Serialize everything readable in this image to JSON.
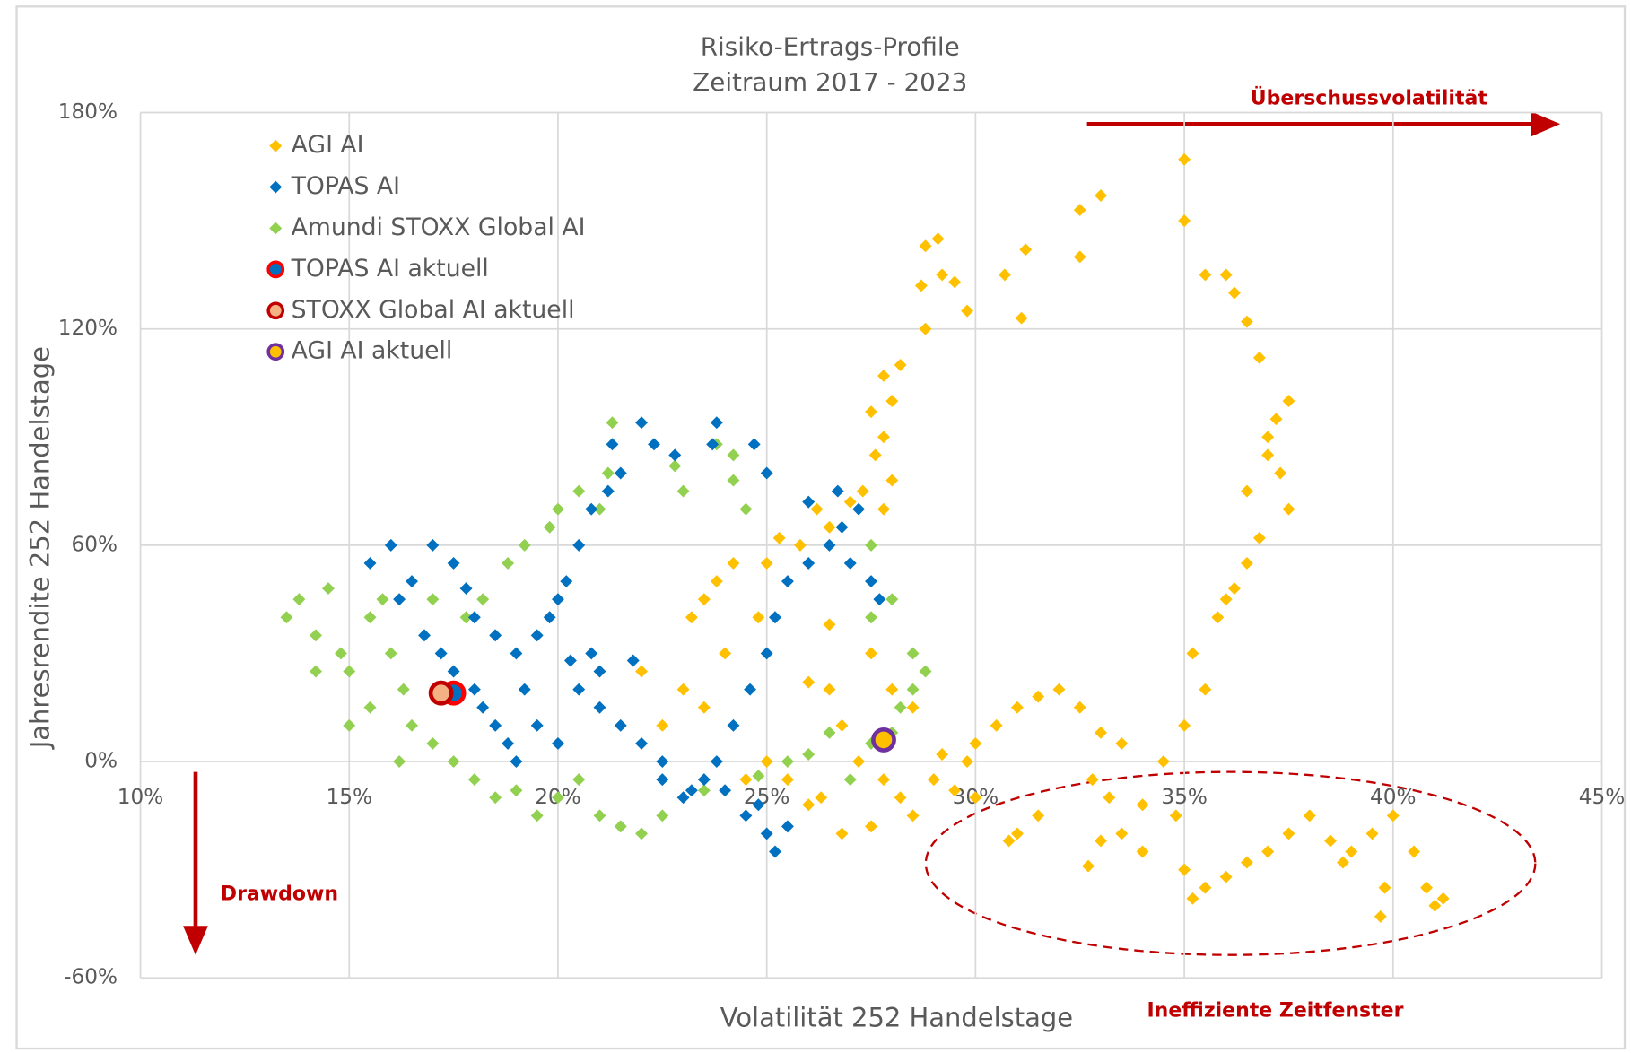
{
  "chart_data": {
    "type": "scatter",
    "title": "Risiko-Ertrags-Profile",
    "subtitle": "Zeitraum 2017 - 2023",
    "x_label": "Volatilität 252 Handelstage",
    "y_label": "Jahresrendite 252 Handelstage",
    "annotations": [
      "Überschussvolatilität",
      "Drawdown",
      "Ineffiziente Zeitfenster"
    ],
    "xlim": [
      10,
      45
    ],
    "ylim": [
      -60,
      180
    ],
    "xticks": [
      {
        "value": 10,
        "label": "10%"
      },
      {
        "value": 15,
        "label": "15%"
      },
      {
        "value": 20,
        "label": "20%"
      },
      {
        "value": 25,
        "label": "25%"
      },
      {
        "value": 30,
        "label": "30%"
      },
      {
        "value": 35,
        "label": "35%"
      },
      {
        "value": 40,
        "label": "40%"
      },
      {
        "value": 45,
        "label": "45%"
      }
    ],
    "yticks": [
      {
        "value": -60,
        "label": "-60%"
      },
      {
        "value": 0,
        "label": "0%"
      },
      {
        "value": 60,
        "label": "60%"
      },
      {
        "value": 120,
        "label": "120%"
      },
      {
        "value": 180,
        "label": "180%"
      }
    ],
    "grid": true,
    "legend": "upper left",
    "series": [
      {
        "name": "AGI AI",
        "color": "#ffc000",
        "marker": "diamond",
        "x": [
          22.5,
          23,
          23.5,
          22,
          24,
          23.5,
          23.8,
          24.2,
          23.2,
          24.5,
          25,
          24.8,
          25,
          25.3,
          25.8,
          26.2,
          26.5,
          27,
          26.5,
          26.8,
          27.2,
          26.3,
          26.8,
          27.5,
          26,
          25.5,
          27.8,
          28.2,
          28.5,
          29,
          29.5,
          30,
          30.5,
          31,
          31.5,
          32,
          32.5,
          33,
          33.5,
          32.8,
          33.2,
          31.5,
          31,
          30.8,
          34,
          34.5,
          35,
          35.5,
          35.2,
          35.8,
          36.2,
          36.5,
          36,
          36.8,
          36.5,
          37,
          37.2,
          37.5,
          37,
          37.3,
          37.5,
          36.2,
          36.5,
          36.8,
          35.5,
          36,
          35,
          35,
          33,
          32.5,
          32.5,
          31.2,
          30.7,
          31.1,
          29.8,
          29.5,
          29.2,
          29.1,
          28.8,
          28.8,
          28.7,
          28.2,
          28,
          27.8,
          27.5,
          27.8,
          27.6,
          27.8,
          28,
          27.3,
          26.5,
          26,
          27.5,
          28,
          28.5,
          29.2,
          30,
          35,
          35.5,
          35.2,
          36,
          36.5,
          37,
          37.5,
          38,
          38.5,
          38.8,
          39,
          39.5,
          39.8,
          39.7,
          40,
          40.5,
          40.8,
          41,
          41.2,
          34,
          33,
          32.7,
          33.5,
          34.8,
          29.8
        ],
        "values": [
          10,
          20,
          15,
          25,
          30,
          45,
          50,
          55,
          40,
          -5,
          0,
          40,
          55,
          62,
          60,
          70,
          65,
          72,
          20,
          10,
          0,
          -10,
          -20,
          -18,
          -12,
          -5,
          -5,
          -10,
          -15,
          -5,
          -8,
          5,
          10,
          15,
          18,
          20,
          15,
          8,
          5,
          -5,
          -10,
          -15,
          -20,
          -22,
          -12,
          0,
          10,
          20,
          30,
          40,
          48,
          55,
          45,
          62,
          75,
          85,
          95,
          100,
          90,
          80,
          70,
          130,
          122,
          112,
          135,
          135,
          150,
          167,
          157,
          153,
          140,
          142,
          135,
          123,
          125,
          133,
          135,
          145,
          143,
          120,
          132,
          110,
          100,
          107,
          97,
          90,
          85,
          70,
          78,
          75,
          38,
          22,
          30,
          20,
          15,
          2,
          -10,
          -30,
          -35,
          -38,
          -32,
          -28,
          -25,
          -20,
          -15,
          -22,
          -28,
          -25,
          -20,
          -35,
          -43,
          -15,
          -25,
          -35,
          -40,
          -38,
          -25,
          -22,
          -29,
          -20,
          -15,
          0
        ]
      },
      {
        "name": "TOPAS AI",
        "color": "#0070c0",
        "marker": "diamond",
        "x": [
          15.5,
          16,
          16.5,
          17,
          17.5,
          16.2,
          16.8,
          17.2,
          17.5,
          18,
          18.5,
          18.8,
          19,
          19.5,
          20,
          20.5,
          21,
          21.5,
          22,
          22.5,
          23,
          23.5,
          24,
          24.5,
          25,
          25.2,
          25.5,
          24.8,
          23.8,
          24.2,
          24.6,
          25,
          25.2,
          25.5,
          26,
          26.5,
          26.8,
          27.2,
          27,
          27.5,
          27.7,
          26.7,
          26,
          25,
          24.7,
          23.8,
          23.7,
          22.8,
          22.3,
          22,
          21.3,
          21.5,
          21.2,
          20.8,
          20.5,
          20.2,
          20,
          19.8,
          19.5,
          19,
          18.5,
          18,
          17.8,
          20.8,
          21,
          21.8,
          20.3,
          19.2,
          18.2,
          22.5,
          23.2
        ],
        "values": [
          55,
          60,
          50,
          60,
          55,
          45,
          35,
          30,
          25,
          20,
          10,
          5,
          0,
          10,
          5,
          20,
          15,
          10,
          5,
          -5,
          -10,
          -5,
          -8,
          -15,
          -20,
          -25,
          -18,
          -12,
          0,
          10,
          20,
          30,
          40,
          50,
          55,
          60,
          65,
          70,
          55,
          50,
          45,
          75,
          72,
          80,
          88,
          94,
          88,
          85,
          88,
          94,
          88,
          80,
          75,
          70,
          60,
          50,
          45,
          40,
          35,
          30,
          35,
          40,
          48,
          30,
          25,
          28,
          28,
          20,
          15,
          0,
          -8
        ]
      },
      {
        "name": "Amundi STOXX Global AI",
        "color": "#92d050",
        "marker": "diamond",
        "x": [
          13.5,
          13.8,
          14.2,
          14.5,
          14.8,
          15,
          15.5,
          15.8,
          16,
          16.3,
          16.5,
          17,
          17.5,
          18,
          18.5,
          19,
          19.5,
          20,
          20.5,
          21,
          21.5,
          22,
          22.5,
          15,
          15.5,
          14.2,
          16.2,
          17.8,
          17,
          18.2,
          18.8,
          19.2,
          19.8,
          20,
          20.5,
          21,
          21.2,
          21.3,
          22.8,
          23,
          23.8,
          24.2,
          24.2,
          24.5,
          25.5,
          26,
          26.5,
          27,
          27.5,
          28,
          28.2,
          28.5,
          28.8,
          28.5,
          27.5,
          28,
          27.5,
          23.5,
          24.8
        ],
        "values": [
          40,
          45,
          35,
          48,
          30,
          25,
          40,
          45,
          30,
          20,
          10,
          5,
          0,
          -5,
          -10,
          -8,
          -15,
          -10,
          -5,
          -15,
          -18,
          -20,
          -15,
          10,
          15,
          25,
          0,
          40,
          45,
          45,
          55,
          60,
          65,
          70,
          75,
          70,
          80,
          94,
          82,
          75,
          88,
          85,
          78,
          70,
          0,
          2,
          8,
          -5,
          5,
          8,
          15,
          20,
          25,
          30,
          40,
          45,
          60,
          -8,
          -4
        ]
      },
      {
        "name": "TOPAS AI aktuell",
        "color": "#0070c0",
        "edgecolor": "#ff0000",
        "marker": "circle",
        "x": [
          17.5
        ],
        "values": [
          19
        ]
      },
      {
        "name": "STOXX Global AI aktuell",
        "color": "#f4b183",
        "edgecolor": "#c00000",
        "marker": "circle",
        "x": [
          17.2
        ],
        "values": [
          19
        ]
      },
      {
        "name": "AGI AI aktuell",
        "color": "#ffc000",
        "edgecolor": "#7030a0",
        "marker": "circle",
        "x": [
          27.8
        ],
        "values": [
          6
        ]
      }
    ]
  }
}
